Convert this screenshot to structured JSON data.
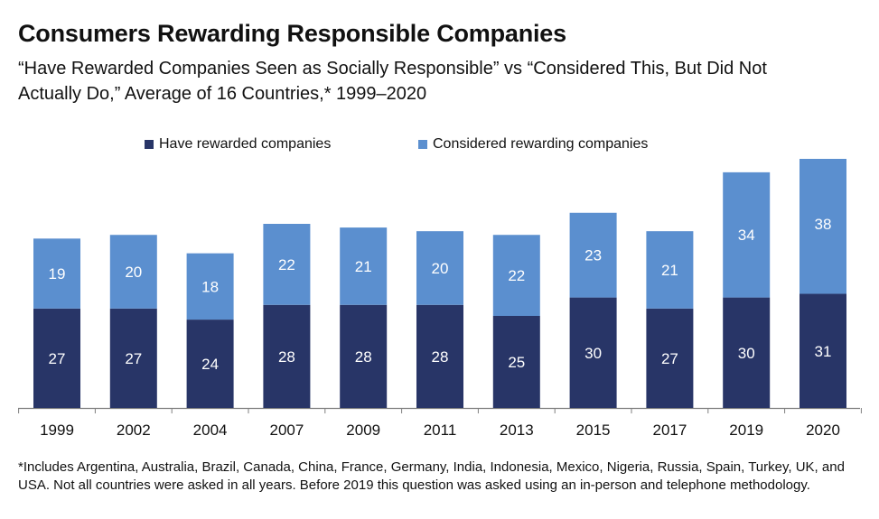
{
  "title": "Consumers Rewarding Responsible Companies",
  "subtitle": "“Have Rewarded Companies Seen as Socially Responsible” vs “Considered This, But Did Not Actually Do,” Average of 16 Countries,* 1999–2020",
  "footnote": "*Includes Argentina, Australia, Brazil, Canada, China, France, Germany, India, Indonesia, Mexico, Nigeria, Russia, Spain, Turkey, UK, and USA. Not all countries were asked in all years. Before 2019 this question was asked using an in-person and telephone methodology.",
  "colors": {
    "rewarded": "#283567",
    "considered": "#5b8fcf",
    "axis": "#7f7f7f"
  },
  "chart_data": {
    "type": "bar",
    "stacked": true,
    "categories": [
      "1999",
      "2002",
      "2004",
      "2007",
      "2009",
      "2011",
      "2013",
      "2015",
      "2017",
      "2019",
      "2020"
    ],
    "series": [
      {
        "name": "Have rewarded companies",
        "values": [
          27,
          27,
          24,
          28,
          28,
          28,
          25,
          30,
          27,
          30,
          31
        ]
      },
      {
        "name": "Considered rewarding companies",
        "values": [
          19,
          20,
          18,
          22,
          21,
          20,
          22,
          23,
          21,
          34,
          38
        ]
      }
    ],
    "ylim": [
      0,
      70
    ],
    "legend": "top-center",
    "grid": false
  }
}
